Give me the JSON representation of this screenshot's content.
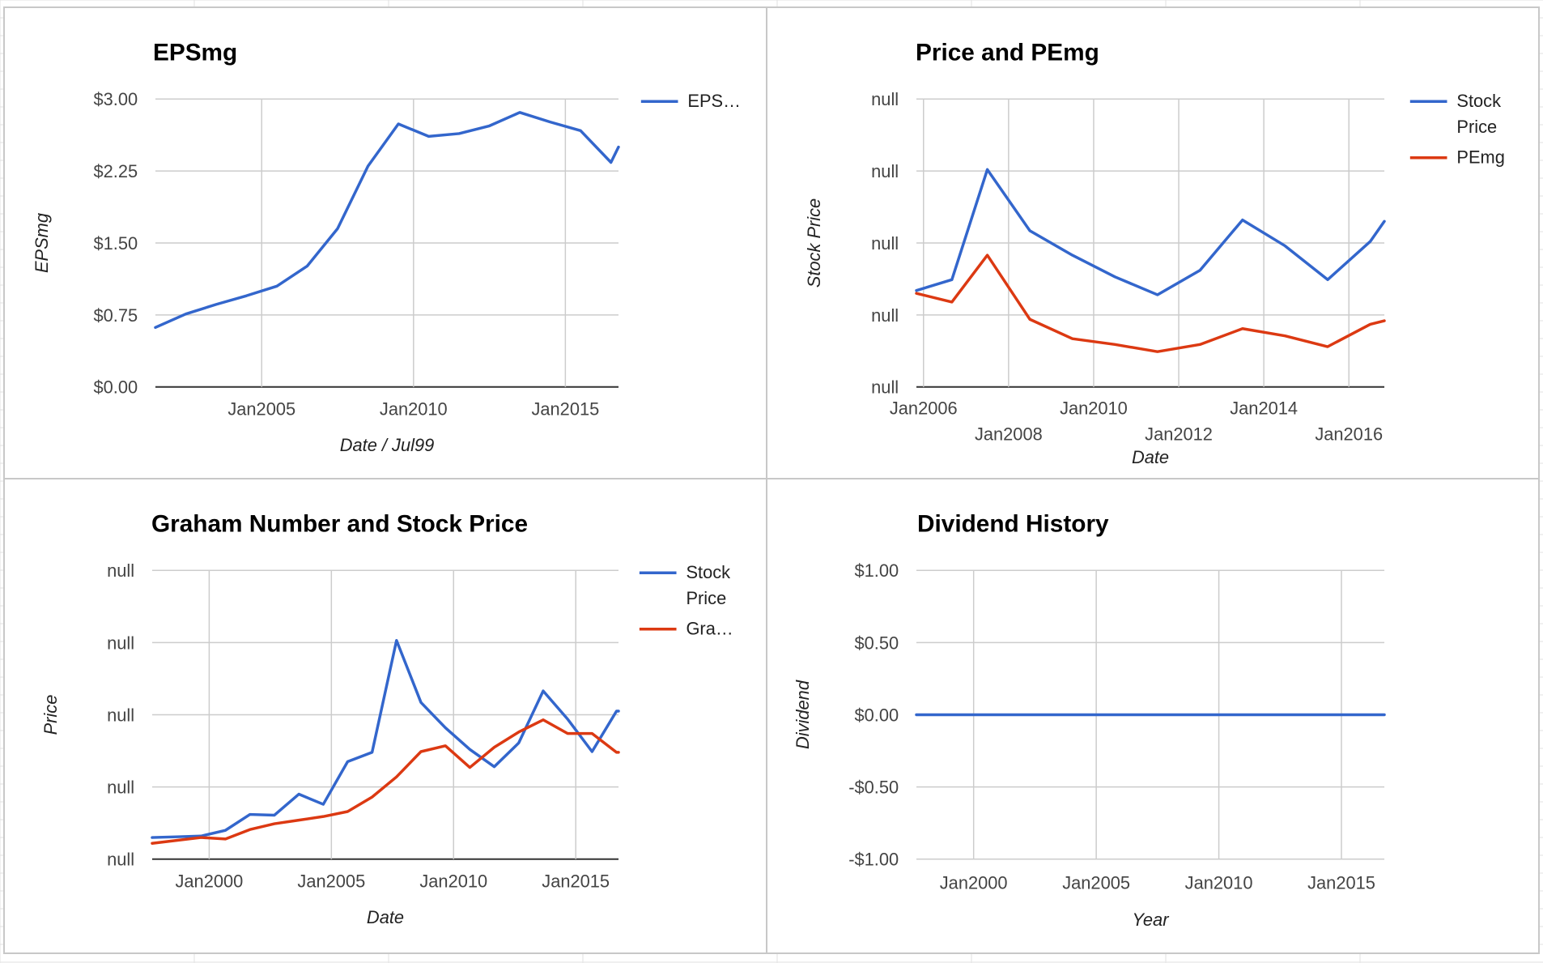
{
  "colors": {
    "blue": "#3366cc",
    "red": "#dc3912",
    "grid": "#cccccc",
    "sheet_grid": "#e2e2e2",
    "border": "#c8c8c8"
  },
  "chart_data": [
    {
      "id": "eps",
      "type": "line",
      "title": "EPSmg",
      "xlabel": "Date / Jul99",
      "ylabel": "EPSmg",
      "yticks": [
        "$0.00",
        "$0.75",
        "$1.50",
        "$2.25",
        "$3.00"
      ],
      "ylim": [
        0,
        3
      ],
      "xlim": [
        "2001-07",
        "2016-10"
      ],
      "xticks": [
        {
          "label": "Jan2005",
          "x": "2005-01"
        },
        {
          "label": "Jan2010",
          "x": "2010-01"
        },
        {
          "label": "Jan2015",
          "x": "2015-01"
        }
      ],
      "x": [
        "2001-07",
        "2002-07",
        "2003-07",
        "2004-07",
        "2005-07",
        "2006-07",
        "2007-07",
        "2008-07",
        "2009-07",
        "2010-07",
        "2011-07",
        "2012-07",
        "2013-07",
        "2014-07",
        "2015-07",
        "2016-07",
        "2016-10"
      ],
      "series": [
        {
          "name": "EPS…",
          "color": "#3366cc",
          "values": [
            0.62,
            0.76,
            0.86,
            0.95,
            1.05,
            1.26,
            1.65,
            2.3,
            2.74,
            2.61,
            2.64,
            2.72,
            2.86,
            2.76,
            2.67,
            2.34,
            2.5
          ]
        }
      ],
      "grid": true,
      "legend_position": "right"
    },
    {
      "id": "price-pe",
      "type": "line",
      "title": "Price and PEmg",
      "xlabel": "Date",
      "ylabel": "Stock Price",
      "yticks": [
        "null",
        "null",
        "null",
        "null",
        "null"
      ],
      "ylim": [
        0,
        4
      ],
      "xlim": [
        "2005-11",
        "2016-11"
      ],
      "xticks": [
        {
          "label": "Jan2006",
          "x": "2006-01"
        },
        {
          "label": "Jan2008",
          "x": "2008-01"
        },
        {
          "label": "Jan2010",
          "x": "2010-01"
        },
        {
          "label": "Jan2012",
          "x": "2012-01"
        },
        {
          "label": "Jan2014",
          "x": "2014-01"
        },
        {
          "label": "Jan2016",
          "x": "2016-01"
        }
      ],
      "x": [
        "2005-11",
        "2006-09",
        "2007-07",
        "2008-07",
        "2009-07",
        "2010-07",
        "2011-07",
        "2012-07",
        "2013-07",
        "2014-07",
        "2015-07",
        "2016-07",
        "2016-11"
      ],
      "series": [
        {
          "name": "Stock Price",
          "color": "#3366cc",
          "values": [
            1.34,
            1.49,
            3.02,
            2.17,
            1.83,
            1.53,
            1.28,
            1.62,
            2.32,
            1.96,
            1.49,
            2.02,
            2.3
          ]
        },
        {
          "name": "PEmg",
          "color": "#dc3912",
          "values": [
            1.3,
            1.18,
            1.83,
            0.94,
            0.67,
            0.59,
            0.49,
            0.59,
            0.81,
            0.71,
            0.56,
            0.87,
            0.92
          ]
        }
      ],
      "grid": true,
      "legend_position": "right"
    },
    {
      "id": "graham",
      "type": "line",
      "title": "Graham Number and Stock Price",
      "xlabel": "Date",
      "ylabel": "Price",
      "yticks": [
        "null",
        "null",
        "null",
        "null",
        "null"
      ],
      "ylim": [
        0,
        4
      ],
      "xlim": [
        "1997-09",
        "2016-10"
      ],
      "xticks": [
        {
          "label": "Jan2000",
          "x": "2000-01"
        },
        {
          "label": "Jan2005",
          "x": "2005-01"
        },
        {
          "label": "Jan2010",
          "x": "2010-01"
        },
        {
          "label": "Jan2015",
          "x": "2015-01"
        }
      ],
      "x": [
        "1997-09",
        "1998-09",
        "1999-09",
        "2000-09",
        "2001-09",
        "2002-09",
        "2003-09",
        "2004-09",
        "2005-09",
        "2006-09",
        "2007-09",
        "2008-09",
        "2009-09",
        "2010-09",
        "2011-09",
        "2012-09",
        "2013-09",
        "2014-09",
        "2015-09",
        "2016-09",
        "2016-10"
      ],
      "series": [
        {
          "name": "Stock Price",
          "color": "#3366cc",
          "values": [
            0.3,
            0.31,
            0.32,
            0.4,
            0.62,
            0.61,
            0.9,
            0.76,
            1.35,
            1.48,
            3.03,
            2.17,
            1.82,
            1.52,
            1.28,
            1.61,
            2.33,
            1.94,
            1.49,
            2.05,
            2.05
          ]
        },
        {
          "name": "Gra…",
          "color": "#dc3912",
          "values": [
            0.22,
            0.26,
            0.3,
            0.28,
            0.41,
            0.49,
            0.54,
            0.59,
            0.66,
            0.86,
            1.14,
            1.49,
            1.57,
            1.27,
            1.55,
            1.76,
            1.93,
            1.74,
            1.74,
            1.48,
            1.48
          ]
        }
      ],
      "grid": true,
      "legend_position": "right"
    },
    {
      "id": "dividend",
      "type": "line",
      "title": "Dividend History",
      "xlabel": "Year",
      "ylabel": "Dividend",
      "yticks": [
        "-$1.00",
        "-$0.50",
        "$0.00",
        "$0.50",
        "$1.00"
      ],
      "ylim": [
        -1,
        1
      ],
      "xlim": [
        "1997-09",
        "2016-10"
      ],
      "xticks": [
        {
          "label": "Jan2000",
          "x": "2000-01"
        },
        {
          "label": "Jan2005",
          "x": "2005-01"
        },
        {
          "label": "Jan2010",
          "x": "2010-01"
        },
        {
          "label": "Jan2015",
          "x": "2015-01"
        }
      ],
      "x": [
        "1997-09",
        "2016-10"
      ],
      "series": [
        {
          "color": "#3366cc",
          "values": [
            0,
            0
          ]
        }
      ],
      "grid": true,
      "legend_position": "none"
    }
  ]
}
